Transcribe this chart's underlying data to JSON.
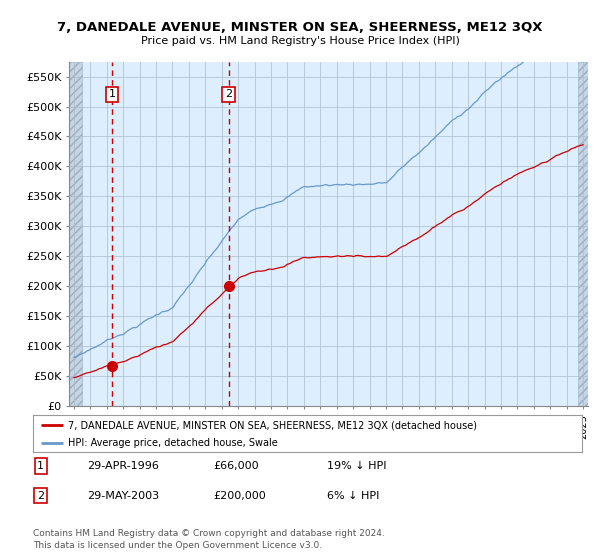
{
  "title": "7, DANEDALE AVENUE, MINSTER ON SEA, SHEERNESS, ME12 3QX",
  "subtitle": "Price paid vs. HM Land Registry's House Price Index (HPI)",
  "ylim": [
    0,
    575000
  ],
  "yticks": [
    0,
    50000,
    100000,
    150000,
    200000,
    250000,
    300000,
    350000,
    400000,
    450000,
    500000,
    550000
  ],
  "ytick_labels": [
    "£0",
    "£50K",
    "£100K",
    "£150K",
    "£200K",
    "£250K",
    "£300K",
    "£350K",
    "£400K",
    "£450K",
    "£500K",
    "£550K"
  ],
  "sale1_date": 1996.33,
  "sale1_price": 66000,
  "sale1_label": "1",
  "sale1_text": "29-APR-1996",
  "sale1_price_text": "£66,000",
  "sale1_hpi_text": "19% ↓ HPI",
  "sale2_date": 2003.42,
  "sale2_price": 200000,
  "sale2_label": "2",
  "sale2_text": "29-MAY-2003",
  "sale2_price_text": "£200,000",
  "sale2_hpi_text": "6% ↓ HPI",
  "legend_line1": "7, DANEDALE AVENUE, MINSTER ON SEA, SHEERNESS, ME12 3QX (detached house)",
  "legend_line2": "HPI: Average price, detached house, Swale",
  "footer1": "Contains HM Land Registry data © Crown copyright and database right 2024.",
  "footer2": "This data is licensed under the Open Government Licence v3.0.",
  "sale_color": "#cc0000",
  "hpi_color": "#6699cc",
  "background_color": "#ffffff",
  "plot_bg_color": "#ddeeff",
  "grid_color": "#aabbcc",
  "xmin": 1993.7,
  "xmax": 2025.3,
  "hatch_end": 1994.5,
  "hatch_start_right": 2024.7
}
